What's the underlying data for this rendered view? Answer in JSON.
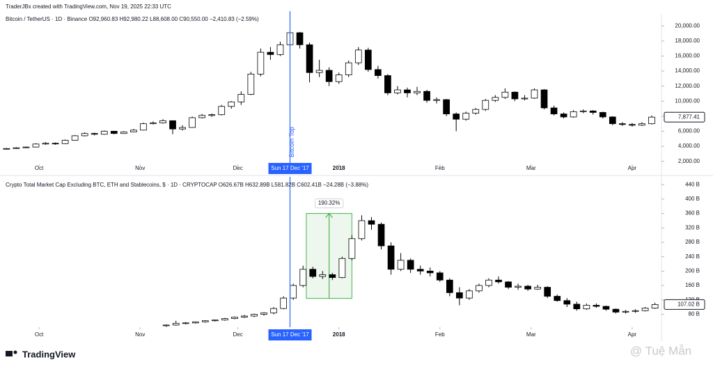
{
  "header": "TraderJBx created with TradingView.com, Nov 19, 2025 22:33 UTC",
  "footer": {
    "brand": "TradingView",
    "watermark": "@ Tuệ Mẫn"
  },
  "chart_data": [
    {
      "type": "candlestick",
      "title": "Bitcoin / TetherUS · 1D · Binance  O92,960.83  H92,980.22  L88,608.00  C90,550.00  −2,410.83 (−2.59%)",
      "up_color": "#ffffff",
      "down_color": "#000000",
      "wick_color": "#000000",
      "x": [
        -10,
        -7,
        -4,
        -1,
        2,
        5,
        8,
        11,
        14,
        17,
        20,
        23,
        26,
        29,
        32,
        35,
        38,
        41,
        44,
        47,
        50,
        53,
        56,
        59,
        62,
        65,
        68,
        71,
        74,
        77,
        80,
        83,
        86,
        89,
        92,
        95,
        98,
        101,
        104,
        107,
        110,
        113,
        116,
        119,
        122,
        125,
        128,
        131,
        134,
        137,
        140,
        143,
        146,
        149,
        152,
        155,
        158,
        161,
        164,
        167,
        170,
        173,
        176,
        179,
        182,
        185,
        188
      ],
      "open": [
        3650,
        3700,
        3800,
        3900,
        4300,
        4400,
        4350,
        4800,
        5400,
        5700,
        5600,
        6000,
        5700,
        5900,
        6150,
        7000,
        7100,
        7400,
        6300,
        6500,
        7800,
        8100,
        8200,
        9300,
        9900,
        10900,
        13600,
        16500,
        16200,
        17500,
        19100,
        17500,
        13800,
        14100,
        12600,
        13500,
        15100,
        16800,
        14200,
        13400,
        11100,
        11500,
        11100,
        11300,
        10100,
        10200,
        8300,
        7600,
        8400,
        8900,
        10100,
        10500,
        11200,
        10300,
        10400,
        11500,
        9100,
        8300,
        7900,
        8600,
        8700,
        8500,
        7900,
        7000,
        6900,
        6800,
        7000
      ],
      "high": [
        3780,
        3880,
        3980,
        4400,
        4550,
        4500,
        4900,
        5500,
        5850,
        5800,
        6100,
        6050,
        6000,
        6300,
        7150,
        7300,
        7600,
        7450,
        6800,
        7950,
        8300,
        8350,
        9500,
        10000,
        11300,
        13900,
        17000,
        17200,
        17900,
        19700,
        19200,
        17800,
        15500,
        14500,
        13800,
        15400,
        17200,
        17100,
        14700,
        13600,
        12000,
        11800,
        11900,
        11500,
        10500,
        10300,
        8500,
        8600,
        9100,
        10300,
        10800,
        11700,
        11300,
        10800,
        11700,
        11600,
        9400,
        8500,
        8800,
        8900,
        8800,
        8600,
        8000,
        7200,
        7100,
        7200,
        8100
      ],
      "low": [
        3600,
        3650,
        3750,
        3850,
        4200,
        4200,
        4300,
        4750,
        5300,
        5450,
        5550,
        5600,
        5650,
        5850,
        6100,
        6900,
        7000,
        5600,
        6100,
        6450,
        7700,
        7900,
        8100,
        9000,
        9500,
        10800,
        13300,
        15500,
        16000,
        17200,
        17000,
        12500,
        13200,
        12000,
        12300,
        13200,
        14800,
        13900,
        13000,
        10800,
        10900,
        10500,
        10800,
        9800,
        9700,
        8000,
        6000,
        7400,
        8200,
        8700,
        9900,
        10300,
        10000,
        10100,
        10300,
        8900,
        8100,
        7700,
        7800,
        8400,
        8200,
        7700,
        6800,
        6700,
        6600,
        6700,
        6900
      ],
      "close": [
        3700,
        3800,
        3900,
        4300,
        4400,
        4350,
        4800,
        5400,
        5700,
        5600,
        6000,
        5700,
        5900,
        6150,
        7000,
        7100,
        7400,
        6300,
        6500,
        7800,
        8100,
        8200,
        9300,
        9900,
        10900,
        13600,
        16500,
        16200,
        17500,
        19100,
        17500,
        13800,
        14100,
        12600,
        13500,
        15100,
        16800,
        14200,
        13400,
        11100,
        11500,
        11100,
        11300,
        10100,
        10200,
        8300,
        7600,
        8400,
        8900,
        10100,
        10500,
        11200,
        10300,
        10400,
        11500,
        9100,
        8300,
        7900,
        8600,
        8700,
        8500,
        7900,
        7000,
        6900,
        6800,
        7000,
        7877.41
      ],
      "xlim": [
        -12,
        191
      ],
      "xticks": [
        {
          "value": 0,
          "label": "Oct"
        },
        {
          "value": 31,
          "label": "Nov"
        },
        {
          "value": 61,
          "label": "Dec"
        },
        {
          "value": 92,
          "label": "2018"
        },
        {
          "value": 123,
          "label": "Feb"
        },
        {
          "value": 151,
          "label": "Mar"
        },
        {
          "value": 182,
          "label": "Apr"
        }
      ],
      "ylim": [
        1600,
        21600
      ],
      "yticks": [
        {
          "value": 2000,
          "label": "2,000.00"
        },
        {
          "value": 4000,
          "label": "4,000.00"
        },
        {
          "value": 6000,
          "label": "6,000.00"
        },
        {
          "value": 8000,
          "label": "8,000.00"
        },
        {
          "value": 10000,
          "label": "10,000.00"
        },
        {
          "value": 12000,
          "label": "12,000.00"
        },
        {
          "value": 14000,
          "label": "14,000.00"
        },
        {
          "value": 16000,
          "label": "16,000.00"
        },
        {
          "value": 18000,
          "label": "18,000.00"
        },
        {
          "value": 20000,
          "label": "20,000.00"
        }
      ],
      "last_price": {
        "value": 7877.41,
        "label": "7,877.41"
      },
      "crosshair": {
        "x": 77,
        "label": "Sun 17 Dec '17",
        "color": "#2962ff"
      },
      "annotation": "Bitcoin Top"
    },
    {
      "type": "candlestick",
      "title": "Crypto Total Market Cap Excluding BTC, ETH and Stablecoins, $ · 1D · CRYPTOCAP  O626.67B  H632.89B  L581.82B  C602.41B  −24.28B (−3.88%)",
      "up_color": "#ffffff",
      "down_color": "#000000",
      "wick_color": "#000000",
      "x": [
        39,
        42,
        45,
        48,
        51,
        54,
        57,
        60,
        63,
        66,
        69,
        72,
        75,
        78,
        81,
        84,
        87,
        90,
        93,
        96,
        99,
        102,
        105,
        108,
        111,
        114,
        117,
        120,
        123,
        126,
        129,
        132,
        135,
        138,
        141,
        144,
        147,
        150,
        153,
        156,
        159,
        162,
        165,
        168,
        171,
        174,
        177,
        180,
        183,
        186,
        189
      ],
      "open": [
        48,
        50,
        55,
        56,
        59,
        62,
        64,
        68,
        72,
        75,
        80,
        84,
        96,
        125,
        160,
        205,
        185,
        190,
        182,
        235,
        290,
        340,
        330,
        270,
        205,
        230,
        205,
        200,
        195,
        175,
        140,
        125,
        145,
        160,
        175,
        170,
        155,
        158,
        150,
        155,
        130,
        118,
        108,
        95,
        105,
        102,
        94,
        86,
        88,
        90,
        97
      ],
      "high": [
        52,
        62,
        58,
        60,
        63,
        65,
        70,
        74,
        78,
        82,
        86,
        100,
        130,
        165,
        215,
        212,
        200,
        195,
        240,
        300,
        355,
        350,
        335,
        280,
        250,
        235,
        215,
        210,
        200,
        180,
        155,
        150,
        165,
        180,
        185,
        172,
        165,
        162,
        162,
        158,
        135,
        125,
        115,
        110,
        110,
        104,
        96,
        92,
        94,
        100,
        112
      ],
      "low": [
        45,
        48,
        52,
        54,
        57,
        60,
        62,
        66,
        70,
        72,
        76,
        80,
        94,
        120,
        155,
        180,
        178,
        175,
        180,
        230,
        285,
        315,
        260,
        190,
        200,
        195,
        190,
        185,
        170,
        130,
        105,
        120,
        140,
        155,
        165,
        150,
        148,
        145,
        148,
        125,
        115,
        100,
        90,
        92,
        98,
        90,
        82,
        82,
        84,
        88,
        95
      ],
      "close": [
        50,
        55,
        56,
        59,
        62,
        64,
        68,
        72,
        75,
        80,
        84,
        96,
        125,
        160,
        205,
        185,
        190,
        182,
        235,
        290,
        340,
        330,
        270,
        205,
        230,
        205,
        200,
        195,
        175,
        140,
        125,
        145,
        160,
        175,
        170,
        155,
        158,
        150,
        155,
        130,
        118,
        108,
        95,
        105,
        102,
        94,
        86,
        88,
        90,
        97,
        107.02
      ],
      "xlim": [
        -12,
        191
      ],
      "xticks": [
        {
          "value": 0,
          "label": "Oct"
        },
        {
          "value": 31,
          "label": "Nov"
        },
        {
          "value": 61,
          "label": "Dec"
        },
        {
          "value": 92,
          "label": "2018"
        },
        {
          "value": 123,
          "label": "Feb"
        },
        {
          "value": 151,
          "label": "Mar"
        },
        {
          "value": 182,
          "label": "Apr"
        }
      ],
      "ylim": [
        44,
        454
      ],
      "yticks": [
        {
          "value": 80,
          "label": "80 B"
        },
        {
          "value": 120,
          "label": "120 B"
        },
        {
          "value": 160,
          "label": "160 B"
        },
        {
          "value": 200,
          "label": "200 B"
        },
        {
          "value": 240,
          "label": "240 B"
        },
        {
          "value": 280,
          "label": "280 B"
        },
        {
          "value": 320,
          "label": "320 B"
        },
        {
          "value": 360,
          "label": "360 B"
        },
        {
          "value": 400,
          "label": "400 B"
        },
        {
          "value": 440,
          "label": "440 B"
        }
      ],
      "last_price": {
        "value": 107.02,
        "label": "107.02 B"
      },
      "crosshair": {
        "x": 77,
        "label": "Sun 17 Dec '17",
        "color": "#2962ff"
      },
      "measure": {
        "label": "190.32%",
        "x": [
          82,
          96
        ],
        "y": [
          124,
          360
        ],
        "color": "#4caf50"
      }
    }
  ]
}
